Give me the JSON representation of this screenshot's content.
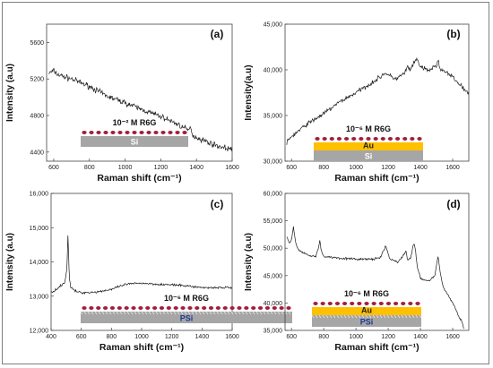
{
  "colors": {
    "line": "#1a1a1a",
    "silicon": "#a6a6a6",
    "gold": "#ffc000",
    "dye": "#a0203c",
    "si_text": "#ffffff",
    "au_text": "#222222",
    "psi_text": "#1f3a93",
    "frame": "#7f7f7f"
  },
  "chart_data": [
    {
      "type": "line",
      "panel_label": "(a)",
      "xlabel": "Raman shift (cm⁻¹)",
      "ylabel": "Intensity (a.u)",
      "xlim": [
        560,
        1600
      ],
      "ylim": [
        4300,
        5800
      ],
      "xticks": [
        600,
        800,
        1000,
        1200,
        1400,
        1600
      ],
      "yticks": [
        4400,
        4800,
        5200,
        5600
      ],
      "ytick_labels": [
        "4400",
        "4800",
        "5200",
        "5600"
      ],
      "grid": false,
      "inset": {
        "molecule": "10⁻² M R6G",
        "layers": [
          "Si"
        ]
      },
      "series": [
        {
          "noise": 0.03,
          "x": [
            570,
            600,
            620,
            650,
            700,
            800,
            900,
            1000,
            1100,
            1200,
            1300,
            1350,
            1370,
            1380,
            1400,
            1450,
            1500,
            1550,
            1600
          ],
          "y": [
            5260,
            5290,
            5250,
            5230,
            5200,
            5120,
            5010,
            4940,
            4860,
            4790,
            4700,
            4640,
            4660,
            4580,
            4560,
            4520,
            4480,
            4450,
            4430
          ]
        }
      ]
    },
    {
      "type": "line",
      "panel_label": "(b)",
      "xlabel": "Raman shift (cm⁻¹)",
      "ylabel": "Intensity(a.u)",
      "xlim": [
        560,
        1700
      ],
      "ylim": [
        30000,
        45000
      ],
      "xticks": [
        600,
        800,
        1000,
        1200,
        1400,
        1600
      ],
      "yticks": [
        30000,
        35000,
        40000,
        45000
      ],
      "ytick_labels": [
        "30,000",
        "35,000",
        "40,000",
        "45,000"
      ],
      "grid": false,
      "inset": {
        "molecule": "10⁻⁶ M R6G",
        "layers": [
          "Au",
          "Si"
        ]
      },
      "series": [
        {
          "noise": 0.025,
          "x": [
            570,
            600,
            650,
            700,
            800,
            900,
            1000,
            1100,
            1150,
            1180,
            1200,
            1250,
            1300,
            1320,
            1340,
            1360,
            1380,
            1400,
            1450,
            1500,
            1510,
            1520,
            1550,
            1600,
            1620,
            1650,
            1700
          ],
          "y": [
            32000,
            32700,
            33400,
            34100,
            35200,
            36500,
            37500,
            38600,
            39200,
            39700,
            39400,
            39000,
            39600,
            40300,
            40000,
            40700,
            41200,
            40300,
            39900,
            40500,
            41000,
            40200,
            39800,
            39200,
            38800,
            38300,
            37300
          ]
        }
      ]
    },
    {
      "type": "line",
      "panel_label": "(c)",
      "xlabel": "Raman shift (cm⁻¹)",
      "ylabel": "Intensity (a.u)",
      "xlim": [
        400,
        1600
      ],
      "ylim": [
        12000,
        16000
      ],
      "xticks": [
        400,
        600,
        800,
        1000,
        1200,
        1400,
        1600
      ],
      "yticks": [
        12000,
        13000,
        14000,
        15000,
        16000
      ],
      "ytick_labels": [
        "12,000",
        "13,000",
        "14,000",
        "15,000",
        "16,000"
      ],
      "grid": false,
      "inset": {
        "molecule": "10⁻⁶ M R6G",
        "layers": [
          "PSi"
        ]
      },
      "series": [
        {
          "noise": 0.012,
          "x": [
            400,
            450,
            490,
            505,
            512,
            520,
            530,
            545,
            560,
            600,
            700,
            800,
            900,
            1000,
            1100,
            1200,
            1300,
            1400,
            1500,
            1600
          ],
          "y": [
            13100,
            13250,
            13400,
            13800,
            14850,
            13600,
            13250,
            13200,
            13150,
            13100,
            13120,
            13200,
            13350,
            13380,
            13350,
            13330,
            13300,
            13250,
            13250,
            13250
          ]
        }
      ]
    },
    {
      "type": "line",
      "panel_label": "(d)",
      "xlabel": "Raman shift (cm⁻¹)",
      "ylabel": "Intensity (a.u)",
      "xlim": [
        560,
        1700
      ],
      "ylim": [
        35000,
        60000
      ],
      "xticks": [
        600,
        800,
        1000,
        1200,
        1400,
        1600
      ],
      "yticks": [
        35000,
        40000,
        45000,
        50000,
        55000,
        60000
      ],
      "ytick_labels": [
        "35,000",
        "40,000",
        "45,000",
        "50,000",
        "55,000",
        "60,000"
      ],
      "grid": false,
      "inset": {
        "molecule": "10⁻⁶ M R6G",
        "layers": [
          "Au",
          "PSi"
        ]
      },
      "series": [
        {
          "noise": 0.012,
          "x": [
            570,
            590,
            600,
            612,
            620,
            630,
            650,
            700,
            750,
            770,
            775,
            785,
            800,
            900,
            1000,
            1100,
            1150,
            1170,
            1185,
            1195,
            1210,
            1260,
            1290,
            1310,
            1320,
            1340,
            1355,
            1362,
            1370,
            1380,
            1400,
            1450,
            1490,
            1505,
            1510,
            1520,
            1540,
            1600,
            1640,
            1660,
            1670
          ],
          "y": [
            52000,
            51000,
            51500,
            54000,
            52000,
            50500,
            49500,
            48800,
            48500,
            50200,
            51500,
            49500,
            48500,
            48200,
            48000,
            48000,
            48200,
            49500,
            50300,
            49500,
            48000,
            47500,
            48500,
            49500,
            47800,
            48300,
            50500,
            51000,
            49500,
            46500,
            44500,
            44000,
            45000,
            48000,
            48500,
            46000,
            43000,
            40000,
            37500,
            36500,
            35200
          ]
        }
      ]
    }
  ]
}
